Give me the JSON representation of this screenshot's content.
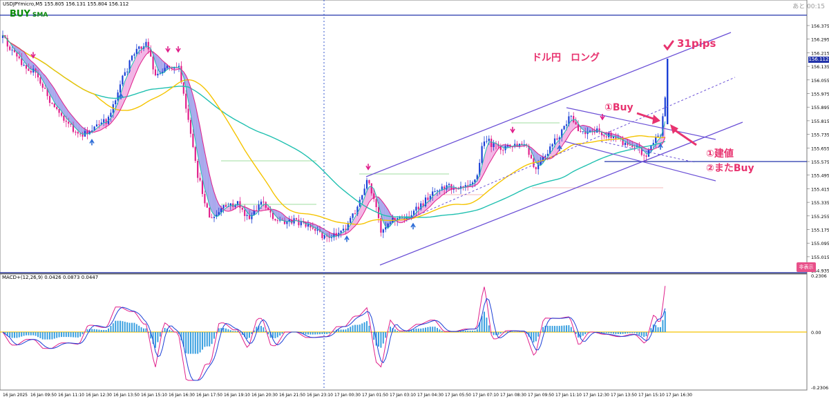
{
  "header": {
    "symbol_line": "USDJPYmicro,M5  155.805 156.131 155.804 156.112",
    "timer": "あと 00:15",
    "signal": "BUY",
    "signal_sub": "SMA"
  },
  "current_price": "156.112",
  "price_axis": [
    "156.375",
    "156.295",
    "156.215",
    "156.135",
    "156.055",
    "155.975",
    "155.895",
    "155.815",
    "155.735",
    "155.655",
    "155.575",
    "155.495",
    "155.415",
    "155.335",
    "155.255",
    "155.175",
    "155.095",
    "155.015",
    "154.935"
  ],
  "macd": {
    "label": "MACD+(12,26,9) 0.0426 0.0873 0.0447",
    "axis_top": "0.2306",
    "axis_zero": "0.00",
    "axis_bottom": "-0.2306"
  },
  "time_axis": [
    "16 Jan 2025",
    "16 Jan 09:50",
    "16 Jan 11:10",
    "16 Jan 12:30",
    "16 Jan 13:50",
    "16 Jan 15:10",
    "16 Jan 16:30",
    "16 Jan 17:50",
    "16 Jan 19:10",
    "16 Jan 20:30",
    "16 Jan 21:50",
    "16 Jan 23:10",
    "17 Jan 00:30",
    "17 Jan 01:50",
    "17 Jan 03:10",
    "17 Jan 04:30",
    "17 Jan 05:50",
    "17 Jan 07:10",
    "17 Jan 08:30",
    "17 Jan 09:50",
    "17 Jan 11:10",
    "17 Jan 12:30",
    "17 Jan 13:50",
    "17 Jan 15:10",
    "17 Jan 16:30"
  ],
  "annotations": {
    "long": "ドル円　ロング",
    "pips": "31pips",
    "buy1": "①Buy",
    "entry": "①建値",
    "buy2": "②またBuy"
  },
  "display_button": "非表示",
  "colors": {
    "bull": "#1a3fd6",
    "bear": "#e01e8a",
    "teal": "#20c0b0",
    "yellow": "#f5c400",
    "channel": "#6a4fd6",
    "annotation": "#e8336f"
  }
}
